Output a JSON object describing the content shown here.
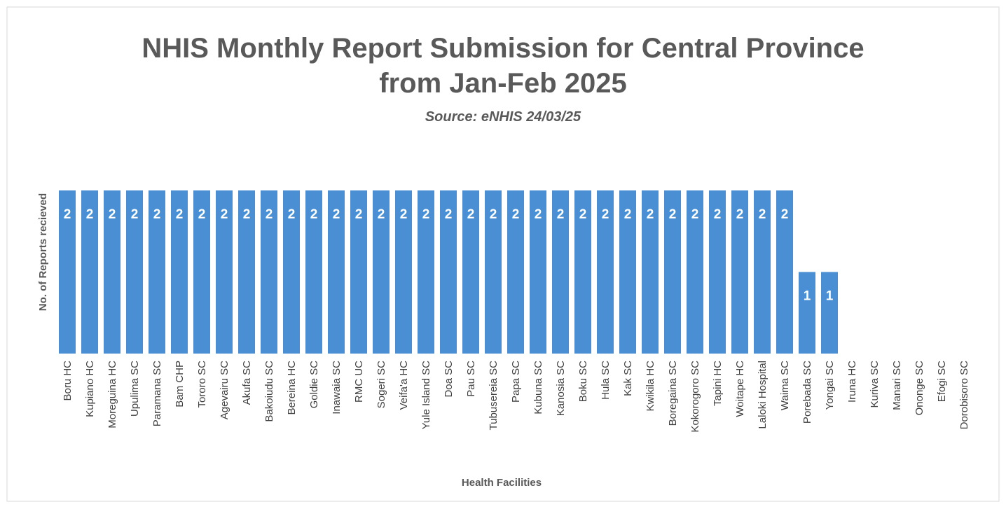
{
  "chart_data": {
    "type": "bar",
    "title": "NHIS Monthly Report Submission for Central Province from Jan-Feb 2025",
    "subtitle": "Source: eNHIS 24/03/25",
    "x_label": "Health Facilities",
    "y_label": "No. of Reports recieved",
    "categories": [
      "Boru HC",
      "Kupiano HC",
      "Moreguina HC",
      "Upulima SC",
      "Paramana SC",
      "Bam CHP",
      "Tororo SC",
      "Agevairu SC",
      "Akufa SC",
      "Bakoiudu SC",
      "Bereina HC",
      "Goldie SC",
      "Inawaia SC",
      "RMC UC",
      "Sogeri SC",
      "Veifa'a HC",
      "Yule Island SC",
      "Doa SC",
      "Pau SC",
      "Tubusereia SC",
      "Papa SC",
      "Kubuna SC",
      "Kanosia SC",
      "Boku SC",
      "Hula SC",
      "Kak SC",
      "Kwikila HC",
      "Boregaina SC",
      "Kokorogoro SC",
      "Tapini HC",
      "Woitape HC",
      "Laloki Hospital",
      "Waima SC",
      "Porebada SC",
      "Yongai SC",
      "Iruna HC",
      "Kuriva SC",
      "Manari SC",
      "Ononge SC",
      "Efogi SC",
      "Dorobisoro SC"
    ],
    "values": [
      2,
      2,
      2,
      2,
      2,
      2,
      2,
      2,
      2,
      2,
      2,
      2,
      2,
      2,
      2,
      2,
      2,
      2,
      2,
      2,
      2,
      2,
      2,
      2,
      2,
      2,
      2,
      2,
      2,
      2,
      2,
      2,
      2,
      1,
      1,
      0,
      0,
      0,
      0,
      0,
      0
    ],
    "color": "#4a8fd4"
  }
}
